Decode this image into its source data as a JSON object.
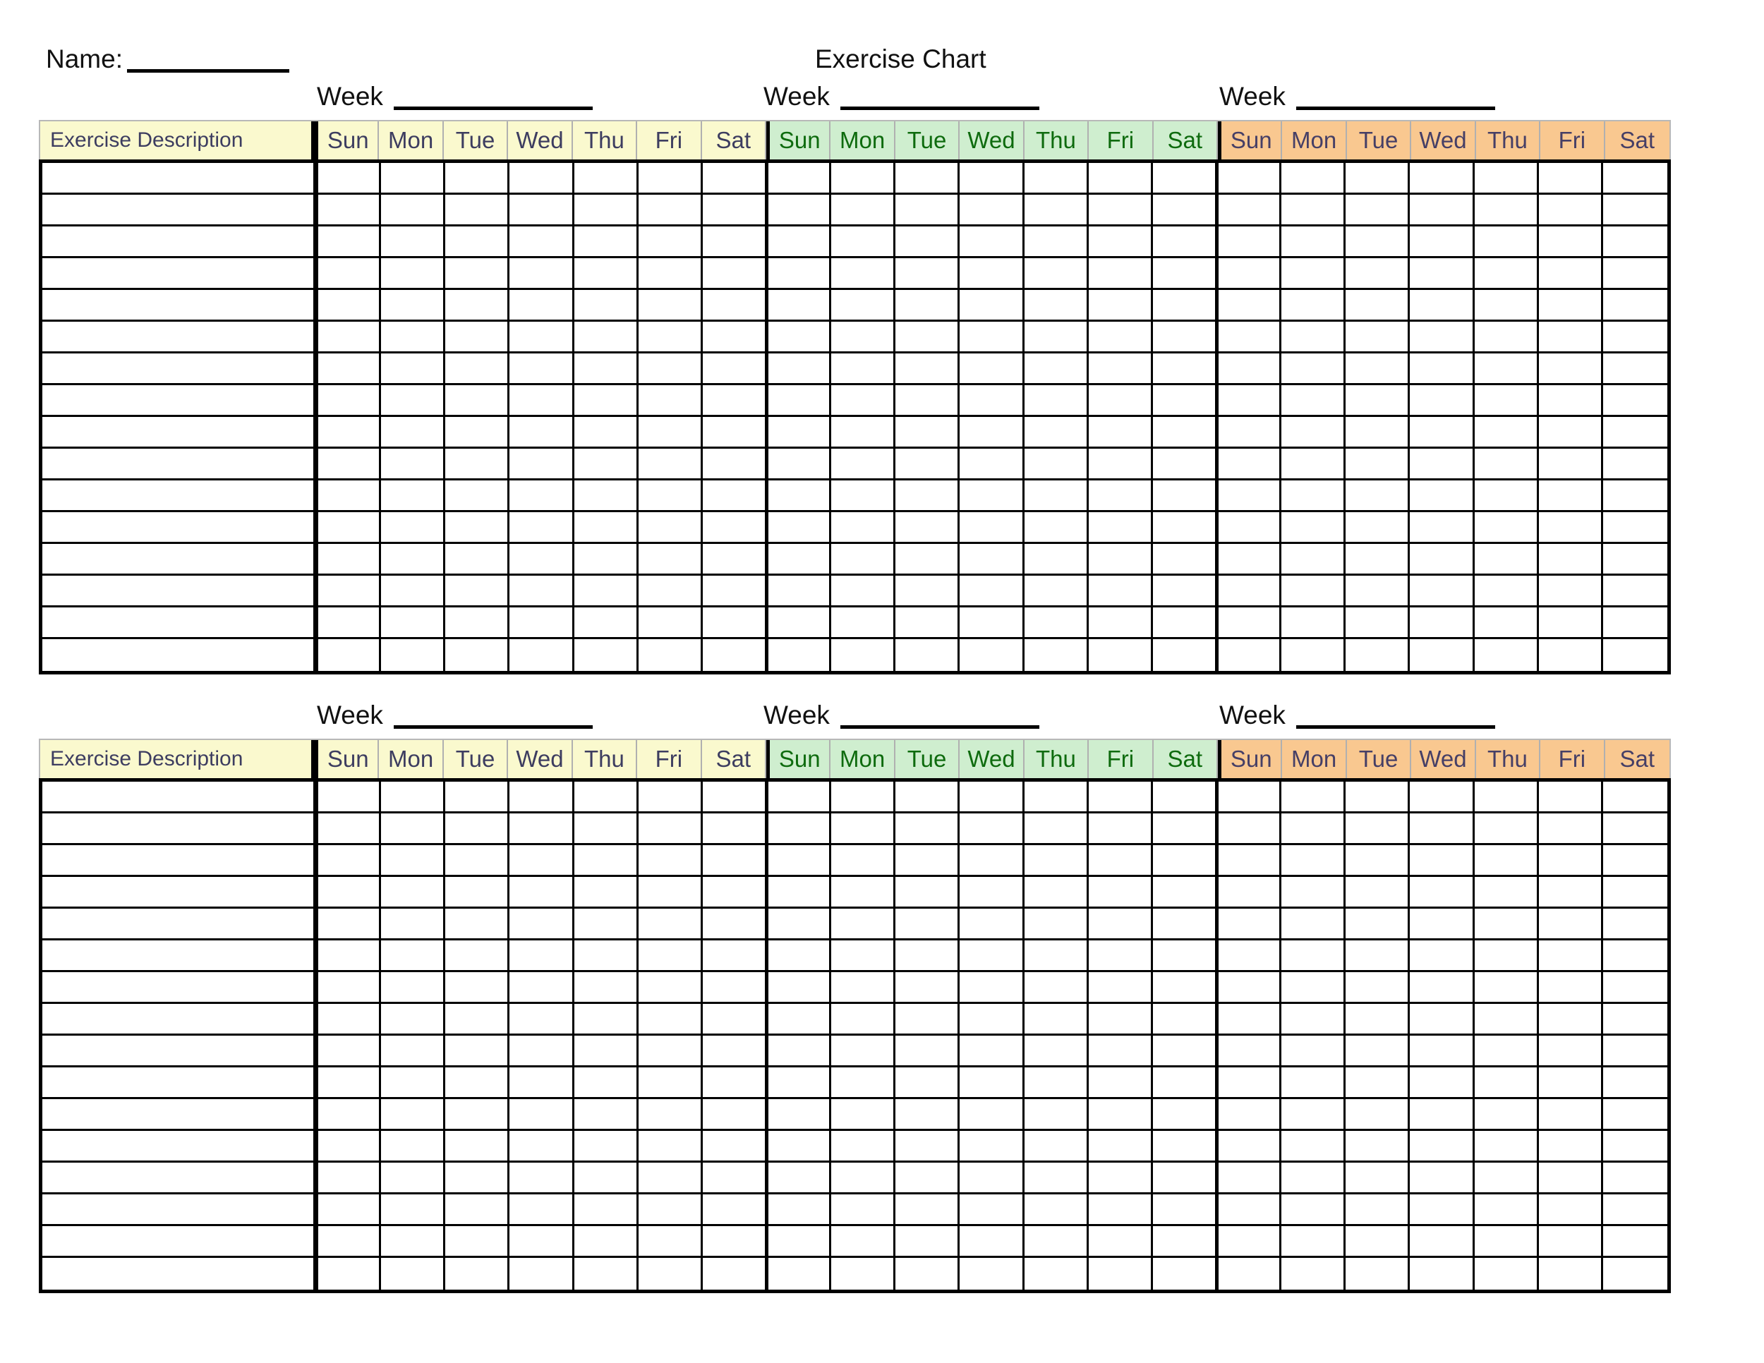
{
  "header": {
    "name_label": "Name:",
    "title": "Exercise Chart",
    "week_label": "Week"
  },
  "grid": {
    "description_header": "Exercise Description",
    "day_names": [
      "Sun",
      "Mon",
      "Tue",
      "Wed",
      "Thu",
      "Fri",
      "Sat"
    ],
    "weeks_per_table": 3,
    "day_columns_per_table": 21,
    "table_count": 2,
    "data_rows_per_table": 16,
    "cells_content": ""
  },
  "week_groups": [
    {
      "name": "week-1",
      "bg": "#FAF9CE",
      "text_color": "#3D3D60"
    },
    {
      "name": "week-2",
      "bg": "#CFEECF",
      "text_color": "#0E6B0E"
    },
    {
      "name": "week-3",
      "bg": "#F9C890",
      "text_color": "#463F66"
    }
  ]
}
